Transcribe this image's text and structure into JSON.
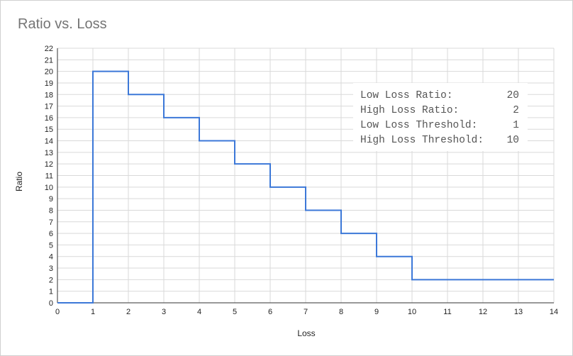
{
  "chart_data": {
    "type": "line",
    "title": "Ratio vs. Loss",
    "xlabel": "Loss",
    "ylabel": "Ratio",
    "xlim": [
      0,
      14
    ],
    "ylim": [
      0,
      22
    ],
    "x_ticks": [
      0,
      1,
      2,
      3,
      4,
      5,
      6,
      7,
      8,
      9,
      10,
      11,
      12,
      13,
      14
    ],
    "y_ticks": [
      0,
      1,
      2,
      3,
      4,
      5,
      6,
      7,
      8,
      9,
      10,
      11,
      12,
      13,
      14,
      15,
      16,
      17,
      18,
      19,
      20,
      21,
      22
    ],
    "grid": true,
    "line_color": "#3c78d8",
    "step_points": [
      [
        0,
        0
      ],
      [
        1,
        0
      ],
      [
        1,
        20
      ],
      [
        2,
        20
      ],
      [
        2,
        18
      ],
      [
        3,
        18
      ],
      [
        3,
        16
      ],
      [
        4,
        16
      ],
      [
        4,
        14
      ],
      [
        5,
        14
      ],
      [
        5,
        12
      ],
      [
        6,
        12
      ],
      [
        6,
        10
      ],
      [
        7,
        10
      ],
      [
        7,
        8
      ],
      [
        8,
        8
      ],
      [
        8,
        6
      ],
      [
        9,
        6
      ],
      [
        9,
        4
      ],
      [
        10,
        4
      ],
      [
        10,
        2
      ],
      [
        14,
        2
      ]
    ]
  },
  "info_box": {
    "rows": [
      {
        "label": "Low Loss Ratio:",
        "value": "20"
      },
      {
        "label": "High Loss Ratio:",
        "value": "2"
      },
      {
        "label": "Low Loss Threshold:",
        "value": "1"
      },
      {
        "label": "High Loss Threshold:",
        "value": "10"
      }
    ]
  }
}
